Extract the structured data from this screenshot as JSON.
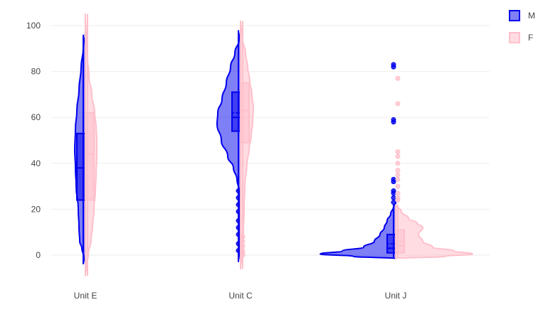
{
  "chart_data": {
    "type": "violin",
    "title": "",
    "xlabel": "",
    "ylabel": "",
    "categories": [
      "Unit E",
      "Unit C",
      "Unit J"
    ],
    "y_ticks": [
      "0",
      "20",
      "40",
      "60",
      "80",
      "100"
    ],
    "ylim": [
      -12,
      105
    ],
    "grid": true,
    "legend_position": "top-right",
    "series": [
      {
        "name": "M",
        "side": "negative",
        "color": "#0000ee",
        "fill": "rgba(0,0,238,0.5)",
        "box": [
          {
            "category": "Unit E",
            "q1": 24,
            "median": 38,
            "mean": 38,
            "q3": 53,
            "whisker_low": -4,
            "whisker_high": 96
          },
          {
            "category": "Unit C",
            "q1": 54,
            "median": 60,
            "mean": 62,
            "q3": 71,
            "whisker_low": -3,
            "whisker_high": 98
          },
          {
            "category": "Unit J",
            "q1": 1,
            "median": 3,
            "mean": 5,
            "q3": 9,
            "whisker_low": -1,
            "whisker_high": 22
          }
        ],
        "outliers": [
          {
            "category": "Unit C",
            "values": [
              28,
              25,
              22,
              19,
              15,
              12,
              9,
              5,
              2
            ]
          },
          {
            "category": "Unit J",
            "values": [
              83,
              82,
              59,
              58,
              33,
              32,
              28,
              27,
              25,
              23
            ]
          }
        ]
      },
      {
        "name": "F",
        "side": "positive",
        "color": "#ffc0cb",
        "fill": "rgba(255,192,203,0.55)",
        "box": [
          {
            "category": "Unit E",
            "q1": 24,
            "median": 44,
            "mean": 45,
            "q3": 62,
            "whisker_low": -9,
            "whisker_high": 105
          },
          {
            "category": "Unit C",
            "q1": 49,
            "median": 63,
            "mean": 60,
            "q3": 75,
            "whisker_low": -6,
            "whisker_high": 102
          },
          {
            "category": "Unit J",
            "q1": 1,
            "median": 4,
            "mean": 6,
            "q3": 11,
            "whisker_low": -1,
            "whisker_high": 22
          }
        ],
        "outliers": [
          {
            "category": "Unit C",
            "values": [
              8,
              6,
              4,
              2,
              1,
              0
            ]
          },
          {
            "category": "Unit J",
            "values": [
              77,
              66,
              45,
              43,
              40,
              37,
              35,
              33,
              30,
              27,
              25,
              24
            ]
          }
        ]
      }
    ]
  }
}
